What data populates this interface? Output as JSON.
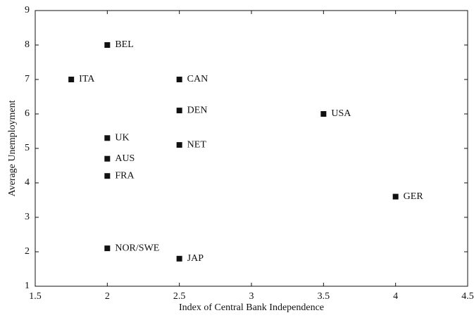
{
  "chart_data": {
    "type": "scatter",
    "x_label": "Index of Central Bank Independence",
    "y_label": "Average Unemployment",
    "labels": [
      "BEL",
      "ITA",
      "CAN",
      "DEN",
      "USA",
      "UK",
      "NET",
      "AUS",
      "FRA",
      "GER",
      "NOR/SWE",
      "JAP"
    ],
    "x": [
      2,
      1.75,
      2.5,
      2.5,
      3.5,
      2,
      2.5,
      2,
      2,
      4,
      2,
      2.5
    ],
    "values": [
      8,
      7,
      7,
      6.1,
      6.0,
      5.3,
      5.1,
      4.7,
      4.2,
      3.6,
      2.1,
      1.8
    ],
    "color": "#111111",
    "xlim": [
      1.5,
      4.5
    ],
    "xticks": [
      1.5,
      2,
      2.5,
      3,
      3.5,
      4,
      4.5
    ],
    "ylim": [
      1,
      9
    ],
    "yticks": [
      1,
      2,
      3,
      4,
      5,
      6,
      7,
      8,
      9
    ]
  }
}
